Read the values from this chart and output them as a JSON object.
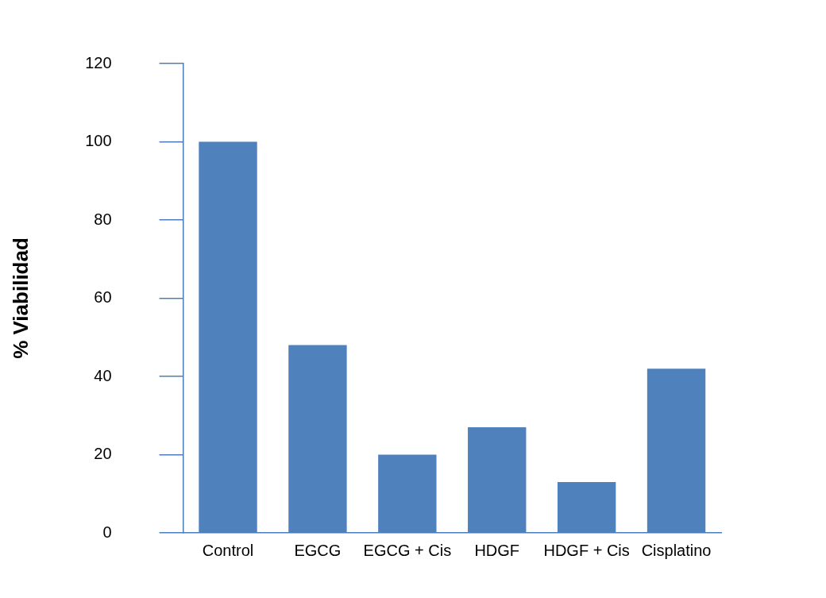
{
  "chart_data": {
    "type": "bar",
    "ylabel": "% Viabilidad",
    "categories": [
      "Control",
      "EGCG",
      "EGCG + Cis",
      "HDGF",
      "HDGF + Cis",
      "Cisplatino"
    ],
    "values": [
      100,
      48,
      20,
      27,
      13,
      42
    ],
    "color": "#4f81bd",
    "ylim": [
      0,
      120
    ],
    "yticks": [
      0,
      20,
      40,
      60,
      80,
      100,
      120
    ],
    "grid": false,
    "legend": false
  }
}
